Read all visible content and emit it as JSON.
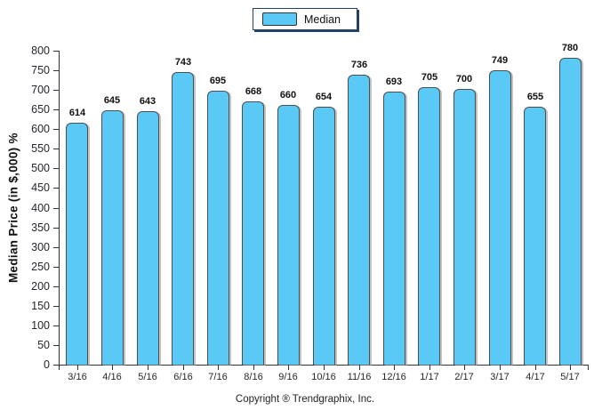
{
  "legend": {
    "label": "Median",
    "swatch_color": "#5bc9f5"
  },
  "chart_data": {
    "type": "bar",
    "title": "",
    "series_name": "Median",
    "categories": [
      "3/16",
      "4/16",
      "5/16",
      "6/16",
      "7/16",
      "8/16",
      "9/16",
      "10/16",
      "11/16",
      "12/16",
      "1/17",
      "2/17",
      "3/17",
      "4/17",
      "5/17"
    ],
    "values": [
      614,
      645,
      643,
      743,
      695,
      668,
      660,
      654,
      736,
      693,
      705,
      700,
      749,
      655,
      780
    ],
    "xlabel": "",
    "ylabel": "Median Price (in $,000) %",
    "ylim": [
      0,
      800
    ],
    "ytick_step": 50,
    "grid": false,
    "legend_position": "top-center",
    "bar_color": "#5bc9f5",
    "bar_border_color": "#4d4d4d",
    "value_labels": true
  },
  "footer": {
    "copyright": "Copyright ® Trendgraphix, Inc."
  }
}
